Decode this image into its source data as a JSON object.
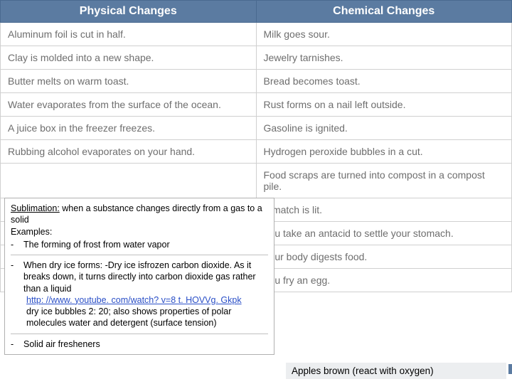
{
  "table": {
    "header_bg": "#5b7ba1",
    "header_color": "#ffffff",
    "cell_color": "#6e6e6e",
    "border_color": "#d0d0d0",
    "header_fontsize": 16,
    "cell_fontsize": 14,
    "columns": [
      "Physical Changes",
      "Chemical Changes"
    ],
    "rows": [
      [
        "Aluminum foil is cut in half.",
        "Milk goes sour."
      ],
      [
        "Clay is molded into a new shape.",
        "Jewelry tarnishes."
      ],
      [
        "Butter melts on warm toast.",
        "Bread becomes toast."
      ],
      [
        "Water evaporates from the surface of the ocean.",
        "Rust forms on a nail left outside."
      ],
      [
        "A juice box in the freezer freezes.",
        "Gasoline is ignited."
      ],
      [
        "Rubbing alcohol evaporates on your hand.",
        "Hydrogen peroxide bubbles in a cut."
      ],
      [
        "",
        "Food scraps are turned into compost in a compost pile."
      ],
      [
        "",
        "A match is lit."
      ],
      [
        "",
        "You take an antacid to settle your stomach."
      ],
      [
        "",
        "Your body digests food."
      ],
      [
        "",
        "You fry an egg."
      ]
    ]
  },
  "overlay": {
    "border_color": "#b0b0b0",
    "background": "#ffffff",
    "fontsize": 12.5,
    "term": "Sublimation:",
    "definition": " when a substance changes directly from a gas to a solid",
    "examples_label": "Examples:",
    "ex1": "The forming of frost from water vapor",
    "ex2a": "When dry ice forms: -Dry ice isfrozen carbon dioxide. As it breaks down, it turns directly into carbon dioxide  gas rather than a liquid",
    "ex2_link": "http: //www. youtube. com/watch? v=8 t. HOVVg. Gkpk",
    "ex2b": "dry ice bubbles 2: 20; also shows properties of polar molecules water and detergent (surface tension)",
    "ex3": "Solid air fresheners",
    "link_color": "#2a4fc7"
  },
  "bottom_note": {
    "text": "Apples brown (react with oxygen)",
    "background": "#eceef0",
    "fontsize": 13.5
  }
}
